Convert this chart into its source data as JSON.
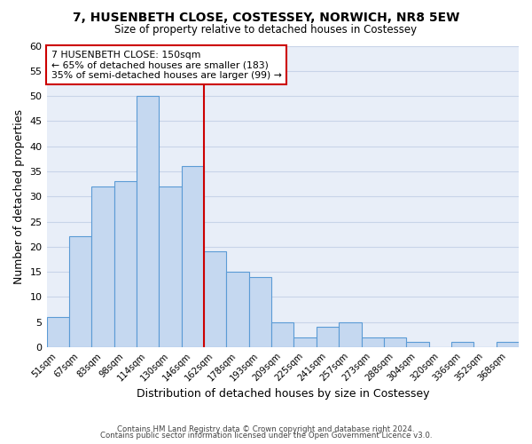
{
  "title": "7, HUSENBETH CLOSE, COSTESSEY, NORWICH, NR8 5EW",
  "subtitle": "Size of property relative to detached houses in Costessey",
  "xlabel": "Distribution of detached houses by size in Costessey",
  "ylabel": "Number of detached properties",
  "bar_labels": [
    "51sqm",
    "67sqm",
    "83sqm",
    "98sqm",
    "114sqm",
    "130sqm",
    "146sqm",
    "162sqm",
    "178sqm",
    "193sqm",
    "209sqm",
    "225sqm",
    "241sqm",
    "257sqm",
    "273sqm",
    "288sqm",
    "304sqm",
    "320sqm",
    "336sqm",
    "352sqm",
    "368sqm"
  ],
  "bar_heights": [
    6,
    22,
    32,
    33,
    50,
    32,
    36,
    19,
    15,
    14,
    5,
    2,
    4,
    5,
    2,
    2,
    1,
    0,
    1,
    0,
    1
  ],
  "bar_color": "#c5d8f0",
  "bar_edge_color": "#5b9bd5",
  "vline_x": 6.5,
  "vline_color": "#cc0000",
  "ylim": [
    0,
    60
  ],
  "yticks": [
    0,
    5,
    10,
    15,
    20,
    25,
    30,
    35,
    40,
    45,
    50,
    55,
    60
  ],
  "annotation_title": "7 HUSENBETH CLOSE: 150sqm",
  "annotation_line1": "← 65% of detached houses are smaller (183)",
  "annotation_line2": "35% of semi-detached houses are larger (99) →",
  "annotation_box_color": "#ffffff",
  "annotation_box_edge": "#cc0000",
  "footer1": "Contains HM Land Registry data © Crown copyright and database right 2024.",
  "footer2": "Contains public sector information licensed under the Open Government Licence v3.0.",
  "background_color": "#ffffff",
  "plot_bg_color": "#e8eef8",
  "grid_color": "#c8d4e8"
}
